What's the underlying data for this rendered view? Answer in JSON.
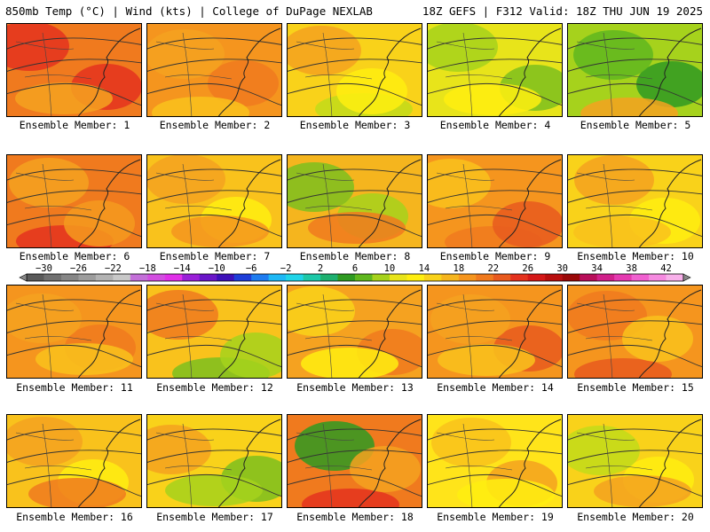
{
  "header": {
    "left": "850mb Temp (°C) | Wind (kts) | College of DuPage NEXLAB",
    "right": "18Z GEFS | F312 Valid: 18Z THU JUN 19 2025"
  },
  "members": [
    {
      "label": "Ensemble Member: 1",
      "base": "#f07a1e",
      "blobs": [
        {
          "c": "#e4321e"
        },
        {
          "c": "#e4321e"
        },
        {
          "c": "#f5a220"
        }
      ]
    },
    {
      "label": "Ensemble Member: 2",
      "base": "#f5951e",
      "blobs": [
        {
          "c": "#f07a1e"
        },
        {
          "c": "#f9c21c"
        },
        {
          "c": "#f5a220"
        }
      ]
    },
    {
      "label": "Ensemble Member: 3",
      "base": "#f9d21a",
      "blobs": [
        {
          "c": "#c2dc1a"
        },
        {
          "c": "#f5a220"
        },
        {
          "c": "#ffee10"
        }
      ]
    },
    {
      "label": "Ensemble Member: 4",
      "base": "#e8e41a",
      "blobs": [
        {
          "c": "#a6d21c"
        },
        {
          "c": "#7cbf1e"
        },
        {
          "c": "#ffee10"
        }
      ]
    },
    {
      "label": "Ensemble Member: 5",
      "base": "#a6d21c",
      "blobs": [
        {
          "c": "#2f9a22"
        },
        {
          "c": "#f5a220"
        },
        {
          "c": "#5fb71e"
        }
      ]
    },
    {
      "label": "Ensemble Member: 6",
      "base": "#f07a1e",
      "blobs": [
        {
          "c": "#e4321e"
        },
        {
          "c": "#f5a220"
        },
        {
          "c": "#f59a1e"
        }
      ]
    },
    {
      "label": "Ensemble Member: 7",
      "base": "#f9c21c",
      "blobs": [
        {
          "c": "#f5a220"
        },
        {
          "c": "#ffee10"
        },
        {
          "c": "#f5951e"
        }
      ]
    },
    {
      "label": "Ensemble Member: 8",
      "base": "#f5b51e",
      "blobs": [
        {
          "c": "#a6d21c"
        },
        {
          "c": "#f07a1e"
        },
        {
          "c": "#7cbf1e"
        }
      ]
    },
    {
      "label": "Ensemble Member: 9",
      "base": "#f5951e",
      "blobs": [
        {
          "c": "#f07a1e"
        },
        {
          "c": "#f9c21c"
        },
        {
          "c": "#e85a1e"
        }
      ]
    },
    {
      "label": "Ensemble Member: 10",
      "base": "#f9d21a",
      "blobs": [
        {
          "c": "#f5a220"
        },
        {
          "c": "#ffee10"
        },
        {
          "c": "#f9c21c"
        }
      ]
    },
    {
      "label": "Ensemble Member: 11",
      "base": "#f5951e",
      "blobs": [
        {
          "c": "#f07a1e"
        },
        {
          "c": "#f9c21c"
        },
        {
          "c": "#f5a220"
        }
      ]
    },
    {
      "label": "Ensemble Member: 12",
      "base": "#f9c21c",
      "blobs": [
        {
          "c": "#7cbf1e"
        },
        {
          "c": "#f07a1e"
        },
        {
          "c": "#a6d21c"
        }
      ]
    },
    {
      "label": "Ensemble Member: 13",
      "base": "#f5a220",
      "blobs": [
        {
          "c": "#f9d21a"
        },
        {
          "c": "#f07a1e"
        },
        {
          "c": "#ffee10"
        }
      ]
    },
    {
      "label": "Ensemble Member: 14",
      "base": "#f5951e",
      "blobs": [
        {
          "c": "#e85a1e"
        },
        {
          "c": "#f9c21c"
        },
        {
          "c": "#f5a220"
        }
      ]
    },
    {
      "label": "Ensemble Member: 15",
      "base": "#f5951e",
      "blobs": [
        {
          "c": "#e85a1e"
        },
        {
          "c": "#f07a1e"
        },
        {
          "c": "#f9c21c"
        }
      ]
    },
    {
      "label": "Ensemble Member: 16",
      "base": "#f9c21c",
      "blobs": [
        {
          "c": "#f5a220"
        },
        {
          "c": "#ffee10"
        },
        {
          "c": "#f07a1e"
        }
      ]
    },
    {
      "label": "Ensemble Member: 17",
      "base": "#f9d21a",
      "blobs": [
        {
          "c": "#7cbf1e"
        },
        {
          "c": "#a6d21c"
        },
        {
          "c": "#f5a220"
        }
      ]
    },
    {
      "label": "Ensemble Member: 18",
      "base": "#f07a1e",
      "blobs": [
        {
          "c": "#e4321e"
        },
        {
          "c": "#2f9a22"
        },
        {
          "c": "#f5a220"
        }
      ]
    },
    {
      "label": "Ensemble Member: 19",
      "base": "#ffe41a",
      "blobs": [
        {
          "c": "#f9c21c"
        },
        {
          "c": "#f5a220"
        },
        {
          "c": "#ffee10"
        }
      ]
    },
    {
      "label": "Ensemble Member: 20",
      "base": "#f9d21a",
      "blobs": [
        {
          "c": "#ffee10"
        },
        {
          "c": "#f5a220"
        },
        {
          "c": "#c2dc1a"
        }
      ]
    }
  ],
  "colorbar": {
    "labels": [
      "−30",
      "−26",
      "−22",
      "−18",
      "−14",
      "−10",
      "−6",
      "−2",
      "2",
      "6",
      "10",
      "14",
      "18",
      "22",
      "26",
      "30",
      "34",
      "38",
      "42"
    ],
    "colors": [
      "#5a5a5a",
      "#707070",
      "#868686",
      "#9c9c9c",
      "#b2b2b2",
      "#c8c8c8",
      "#c36fd8",
      "#d24ee0",
      "#e030e8",
      "#9a20d8",
      "#6a16c8",
      "#3d10b8",
      "#1e3ed8",
      "#1e7cf0",
      "#1eb8f5",
      "#20d4e8",
      "#1ec8a8",
      "#1eb070",
      "#2f9a22",
      "#5fb71e",
      "#a6d21c",
      "#e8e41a",
      "#ffee10",
      "#f9d21a",
      "#f5b51e",
      "#f5951e",
      "#f07a1e",
      "#e85a1e",
      "#e4321e",
      "#d41818",
      "#b80e0e",
      "#9a0808",
      "#b80e5a",
      "#d0208a",
      "#e43ab0",
      "#f060d0",
      "#f58ae0",
      "#f8b0ea"
    ]
  }
}
